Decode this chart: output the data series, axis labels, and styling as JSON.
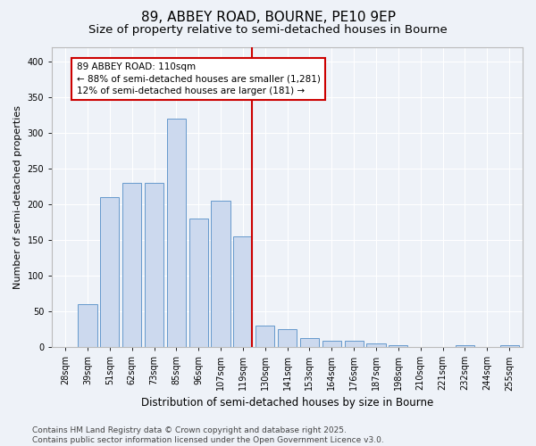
{
  "title1": "89, ABBEY ROAD, BOURNE, PE10 9EP",
  "title2": "Size of property relative to semi-detached houses in Bourne",
  "xlabel": "Distribution of semi-detached houses by size in Bourne",
  "ylabel": "Number of semi-detached properties",
  "categories": [
    "28sqm",
    "39sqm",
    "51sqm",
    "62sqm",
    "73sqm",
    "85sqm",
    "96sqm",
    "107sqm",
    "119sqm",
    "130sqm",
    "141sqm",
    "153sqm",
    "164sqm",
    "176sqm",
    "187sqm",
    "198sqm",
    "210sqm",
    "221sqm",
    "232sqm",
    "244sqm",
    "255sqm"
  ],
  "values": [
    0,
    60,
    210,
    230,
    230,
    320,
    180,
    205,
    155,
    30,
    25,
    13,
    9,
    9,
    5,
    2,
    0,
    0,
    2,
    0,
    2
  ],
  "bar_color": "#ccd9ee",
  "bar_edge_color": "#6699cc",
  "vline_index": 8,
  "vline_color": "#cc0000",
  "annotation_line1": "89 ABBEY ROAD: 110sqm",
  "annotation_line2": "← 88% of semi-detached houses are smaller (1,281)",
  "annotation_line3": "12% of semi-detached houses are larger (181) →",
  "annotation_box_color": "#ffffff",
  "annotation_box_edge": "#cc0000",
  "ylim": [
    0,
    420
  ],
  "yticks": [
    0,
    50,
    100,
    150,
    200,
    250,
    300,
    350,
    400
  ],
  "background_color": "#eef2f8",
  "grid_color": "#ffffff",
  "footer": "Contains HM Land Registry data © Crown copyright and database right 2025.\nContains public sector information licensed under the Open Government Licence v3.0.",
  "title1_fontsize": 11,
  "title2_fontsize": 9.5,
  "xlabel_fontsize": 8.5,
  "ylabel_fontsize": 8,
  "tick_fontsize": 7,
  "footer_fontsize": 6.5,
  "annotation_fontsize": 7.5
}
